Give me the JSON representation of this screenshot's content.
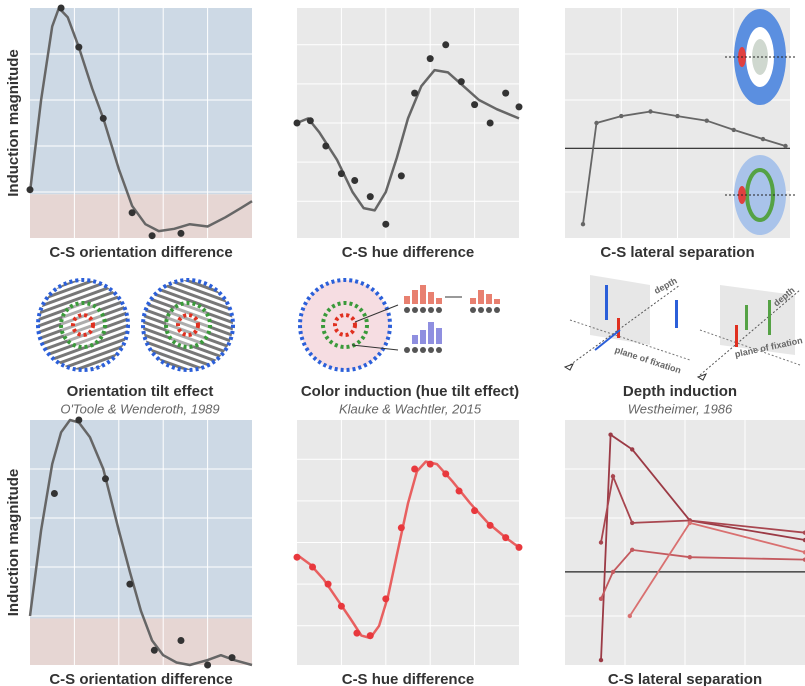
{
  "chart_data": [
    {
      "type": "scatter",
      "ylabel": "Induction magnitude",
      "xlabel": "C-S orientation difference",
      "xlim": [
        0,
        100
      ],
      "ylim": [
        0,
        100
      ],
      "xticks": [
        20,
        40,
        60,
        80
      ],
      "yticks": [
        20,
        40,
        60,
        80
      ],
      "grid": true,
      "regions": [
        {
          "from": 19,
          "to": 100,
          "color": "#cdd9e5"
        },
        {
          "from": 0,
          "to": 19,
          "color": "#e6d6d3"
        }
      ],
      "x": [
        0,
        14,
        22,
        33,
        46,
        55,
        68
      ],
      "values": [
        21,
        100,
        83,
        52,
        11,
        1,
        2
      ],
      "color": "#333333",
      "fit_x": [
        0,
        5,
        10,
        13,
        17,
        22,
        28,
        33,
        40,
        46,
        52,
        58,
        65,
        72,
        80,
        88,
        95,
        100
      ],
      "fit_values": [
        20,
        60,
        92,
        100,
        96,
        83,
        65,
        52,
        30,
        14,
        6,
        3,
        4,
        6,
        5,
        9,
        13,
        16
      ],
      "fit_color": "#666666"
    },
    {
      "type": "scatter",
      "xlabel": "C-S hue difference",
      "xlim": [
        0,
        100
      ],
      "ylim": [
        0,
        100
      ],
      "xticks": [
        20,
        40,
        60,
        80
      ],
      "yticks": [
        16,
        33,
        50,
        67,
        84
      ],
      "grid": true,
      "background": "#e9e9e9",
      "x": [
        0,
        6,
        13,
        20,
        26,
        33,
        40,
        47,
        53,
        60,
        67,
        74,
        80,
        87,
        94,
        100
      ],
      "values": [
        50,
        51,
        40,
        28,
        25,
        18,
        6,
        27,
        63,
        78,
        84,
        68,
        58,
        50,
        63,
        57
      ],
      "color": "#333333",
      "fit_x": [
        0,
        5,
        10,
        18,
        25,
        30,
        35,
        40,
        45,
        50,
        56,
        62,
        68,
        75,
        82,
        90,
        100
      ],
      "fit_values": [
        50,
        52,
        46,
        34,
        20,
        13,
        12,
        20,
        35,
        52,
        66,
        73,
        72,
        66,
        60,
        56,
        52
      ],
      "fit_color": "#666666"
    },
    {
      "type": "line",
      "xlabel": "C-S lateral separation",
      "xlim": [
        0,
        100
      ],
      "ylim": [
        0,
        100
      ],
      "xticks": [
        25,
        50,
        75
      ],
      "yticks": [
        20,
        60,
        80
      ],
      "grid": true,
      "background": "#e9e9e9",
      "hline": 39,
      "series": [
        {
          "color": "#666666",
          "x": [
            8,
            14,
            25,
            38,
            50,
            63,
            75,
            88,
            98
          ],
          "values": [
            6,
            50,
            53,
            55,
            53,
            51,
            47,
            43,
            40
          ]
        }
      ]
    },
    {
      "type": "scatter",
      "ylabel": "Induction magnitude",
      "xlabel": "C-S orientation difference",
      "xlim": [
        0,
        100
      ],
      "ylim": [
        0,
        100
      ],
      "xticks": [
        20,
        40,
        60,
        80
      ],
      "yticks": [
        20,
        40,
        60,
        80
      ],
      "grid": true,
      "regions": [
        {
          "from": 19,
          "to": 100,
          "color": "#cdd9e5"
        },
        {
          "from": 0,
          "to": 19,
          "color": "#e6d6d3"
        }
      ],
      "x": [
        11,
        22,
        34,
        45,
        56,
        68,
        80,
        91
      ],
      "values": [
        70,
        100,
        76,
        33,
        6,
        10,
        0,
        3
      ],
      "color": "#333333",
      "fit_x": [
        0,
        5,
        10,
        14,
        18,
        22,
        27,
        33,
        40,
        45,
        50,
        55,
        60,
        66,
        72,
        80,
        86,
        92,
        100
      ],
      "fit_values": [
        20,
        55,
        82,
        95,
        100,
        99,
        93,
        80,
        55,
        38,
        22,
        10,
        4,
        1,
        0,
        2,
        4,
        2,
        0
      ],
      "fit_color": "#666666"
    },
    {
      "type": "scatter",
      "xlabel": "C-S hue difference",
      "xlim": [
        0,
        100
      ],
      "ylim": [
        0,
        100
      ],
      "xticks": [
        20,
        40,
        60,
        80
      ],
      "yticks": [
        16,
        33,
        50,
        67,
        84
      ],
      "grid": true,
      "background": "#e9e9e9",
      "x": [
        0,
        7,
        14,
        20,
        27,
        33,
        40,
        47,
        53,
        60,
        67,
        73,
        80,
        87,
        94,
        100
      ],
      "values": [
        44,
        40,
        33,
        24,
        13,
        12,
        27,
        56,
        80,
        82,
        78,
        71,
        63,
        57,
        52,
        48
      ],
      "color": "#e8383d",
      "fit_x": [
        0,
        6,
        12,
        18,
        24,
        29,
        33,
        37,
        41,
        45,
        50,
        54,
        58,
        63,
        70,
        78,
        86,
        94,
        100
      ],
      "fit_values": [
        45,
        41,
        35,
        27,
        19,
        12,
        11,
        16,
        28,
        45,
        66,
        79,
        83,
        82,
        75,
        66,
        58,
        52,
        48
      ],
      "fit_color": "#e86060"
    },
    {
      "type": "line",
      "xlabel": "C-S lateral separation",
      "xlim": [
        0,
        100
      ],
      "ylim": [
        0,
        100
      ],
      "xticks": [
        25,
        50,
        75
      ],
      "yticks": [
        20,
        60,
        80
      ],
      "grid": true,
      "background": "#e9e9e9",
      "hline": 38,
      "series": [
        {
          "color": "#9b3a45",
          "x": [
            15,
            19,
            28,
            52,
            100
          ],
          "values": [
            2,
            94,
            88,
            59,
            51
          ]
        },
        {
          "color": "#a8464f",
          "x": [
            15,
            20,
            28,
            52,
            100
          ],
          "values": [
            50,
            77,
            58,
            59,
            54
          ]
        },
        {
          "color": "#c45a5f",
          "x": [
            15,
            20,
            28,
            52,
            100
          ],
          "values": [
            27,
            38,
            47,
            44,
            43
          ]
        },
        {
          "color": "#d97070",
          "x": [
            27,
            52,
            100
          ],
          "values": [
            20,
            58,
            46
          ]
        }
      ]
    }
  ],
  "illustrations": [
    {
      "title": "Orientation tilt effect",
      "citation": "O'Toole & Wenderoth, 1989"
    },
    {
      "title": "Color induction (hue tilt effect)",
      "citation": "Klauke & Wachtler, 2015"
    },
    {
      "title": "Depth induction",
      "citation": "Westheimer, 1986",
      "labels": [
        "depth",
        "plane of fixation",
        "depth",
        "plane of fixation"
      ]
    }
  ]
}
